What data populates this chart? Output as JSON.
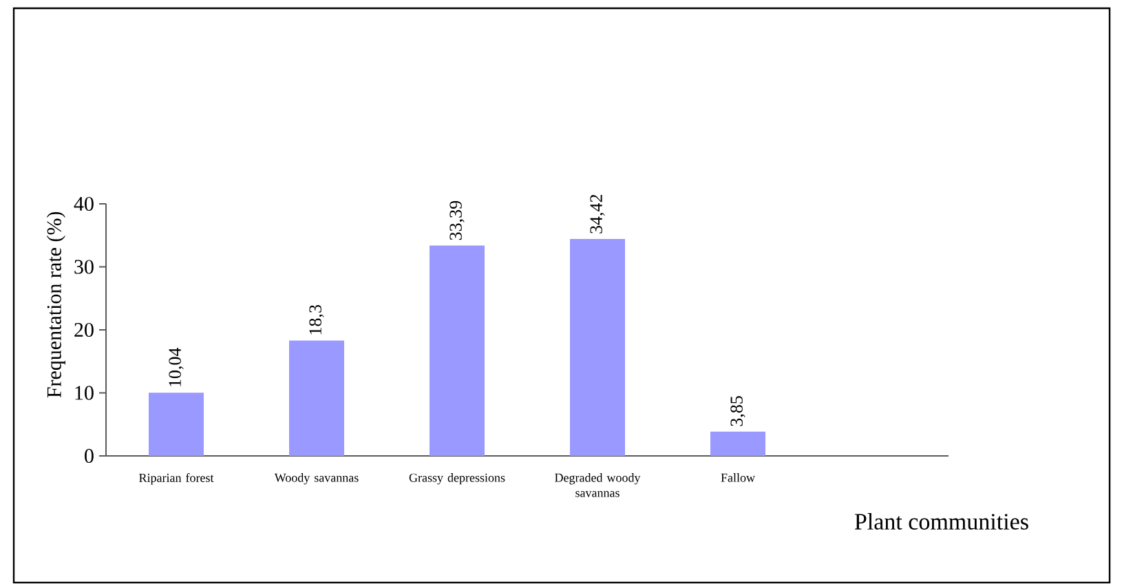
{
  "chart_data": {
    "type": "bar",
    "xlabel": "Plant communities",
    "ylabel": "Frequentation rate (%)",
    "categories": [
      "Riparian forest",
      "Woody savannas",
      "Grassy depressions",
      "Degraded woody savannas",
      "Fallow",
      null
    ],
    "values": [
      10.04,
      18.3,
      33.39,
      34.42,
      3.85,
      null
    ],
    "value_labels": [
      "10,04",
      "18,3",
      "33,39",
      "34,42",
      "3,85",
      null
    ],
    "color": "#9999ff",
    "ylim": [
      0,
      40
    ],
    "yticks": [
      0,
      10,
      20,
      30,
      40
    ],
    "grid": false
  }
}
